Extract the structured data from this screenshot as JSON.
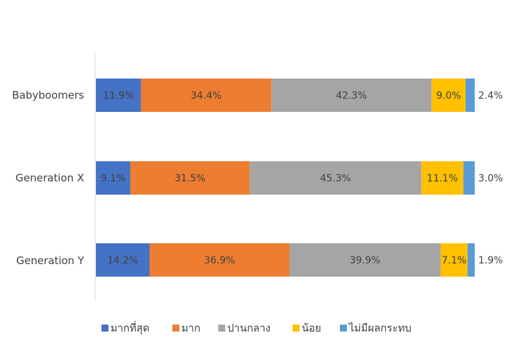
{
  "chart_data": {
    "type": "bar",
    "orientation": "horizontal",
    "stacked": "percent",
    "categories": [
      "Babyboomers",
      "Generation X",
      "Generation Y"
    ],
    "series": [
      {
        "name": "มากที่สุด",
        "color": "#4472C4",
        "values": [
          11.9,
          9.1,
          14.2
        ],
        "labels": [
          "11.9%",
          "9.1%",
          "14.2%"
        ]
      },
      {
        "name": "มาก",
        "color": "#ED7D31",
        "values": [
          34.4,
          31.5,
          36.9
        ],
        "labels": [
          "34.4%",
          "31.5%",
          "36.9%"
        ]
      },
      {
        "name": "ปานกลาง",
        "color": "#A5A5A5",
        "values": [
          42.3,
          45.3,
          39.9
        ],
        "labels": [
          "42.3%",
          "45.3%",
          "39.9%"
        ]
      },
      {
        "name": "น้อย",
        "color": "#FFC000",
        "values": [
          9.0,
          11.1,
          7.1
        ],
        "labels": [
          "9.0%",
          "11.1%",
          "7.1%"
        ]
      },
      {
        "name": "ไม่มีผลกระทบ",
        "color": "#5B9BD5",
        "values": [
          2.4,
          3.0,
          1.9
        ],
        "labels": [
          "2.4%",
          "3.0%",
          "1.9%"
        ]
      }
    ],
    "legend_position": "bottom",
    "grid": false
  }
}
